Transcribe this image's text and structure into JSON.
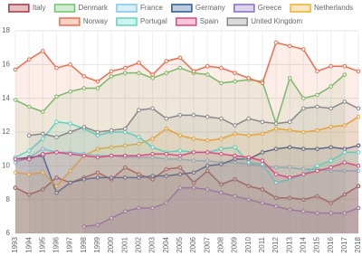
{
  "chart_data": {
    "type": "line",
    "categories": [
      "1993",
      "1994",
      "1995",
      "1996",
      "1997",
      "1998",
      "1999",
      "2000",
      "2001",
      "2002",
      "2003",
      "2004",
      "2005",
      "2006",
      "2007",
      "2008",
      "2009",
      "2010",
      "2011",
      "2012",
      "2013",
      "2014",
      "2015",
      "2016",
      "2017",
      "2018"
    ],
    "ylim": [
      6,
      18
    ],
    "yticks": [
      6,
      8,
      10,
      12,
      14,
      16,
      18
    ],
    "grid": true,
    "legend": "top",
    "series": [
      {
        "name": "Italy",
        "color": "#a8323e",
        "values": [
          8.7,
          8.3,
          8.6,
          9.3,
          9.0,
          9.3,
          9.6,
          9.2,
          9.9,
          9.5,
          9.2,
          9.8,
          9.9,
          9.0,
          9.7,
          8.9,
          9.2,
          8.8,
          8.6,
          8.1,
          8.1,
          8.0,
          8.2,
          7.8,
          8.3,
          8.8
        ]
      },
      {
        "name": "Denmark",
        "color": "#6cc36c",
        "values": [
          13.9,
          13.5,
          13.2,
          14.1,
          14.4,
          14.6,
          14.6,
          15.3,
          15.5,
          15.5,
          15.2,
          15.5,
          15.8,
          15.5,
          15.4,
          14.9,
          15.0,
          15.1,
          15.0,
          12.5,
          15.2,
          14.0,
          14.2,
          14.7,
          15.4,
          null
        ]
      },
      {
        "name": "France",
        "color": "#7ec8e8",
        "values": [
          10.2,
          10.5,
          11.0,
          10.8,
          10.8,
          10.7,
          10.6,
          10.6,
          10.5,
          10.5,
          10.5,
          10.4,
          10.4,
          10.3,
          10.3,
          10.2,
          10.2,
          10.1,
          10.0,
          9.9,
          9.9,
          9.8,
          9.8,
          9.7,
          9.7,
          9.7
        ]
      },
      {
        "name": "Germany",
        "color": "#2a5699",
        "values": [
          10.4,
          10.5,
          10.6,
          8.4,
          9.0,
          9.2,
          9.3,
          9.3,
          9.3,
          9.3,
          9.4,
          9.4,
          9.5,
          9.6,
          10.0,
          10.1,
          10.4,
          10.4,
          10.8,
          11.0,
          11.1,
          11.0,
          11.0,
          11.1,
          11.0,
          11.2
        ]
      },
      {
        "name": "Greece",
        "color": "#8a6cc0",
        "values": [
          null,
          null,
          null,
          null,
          null,
          6.4,
          6.5,
          6.9,
          7.3,
          7.5,
          7.5,
          7.8,
          8.7,
          8.7,
          8.6,
          8.4,
          8.2,
          8.0,
          7.8,
          7.6,
          7.4,
          7.3,
          7.2,
          7.2,
          7.2,
          7.5
        ]
      },
      {
        "name": "Netherlands",
        "color": "#f0b030",
        "values": [
          9.6,
          9.5,
          9.6,
          8.8,
          9.7,
          10.6,
          11.0,
          11.1,
          11.2,
          11.3,
          11.6,
          12.2,
          11.8,
          11.6,
          11.5,
          11.6,
          11.9,
          11.8,
          11.9,
          12.2,
          12.1,
          12.0,
          12.1,
          12.3,
          12.4,
          12.9
        ]
      },
      {
        "name": "Norway",
        "color": "#f06a4a",
        "values": [
          15.7,
          16.3,
          16.8,
          15.8,
          16.0,
          15.3,
          15.0,
          15.6,
          15.8,
          16.1,
          15.4,
          16.2,
          16.4,
          15.6,
          15.9,
          15.8,
          15.5,
          15.2,
          14.9,
          17.3,
          17.1,
          16.9,
          15.6,
          15.9,
          15.9,
          15.6
        ]
      },
      {
        "name": "Portugal",
        "color": "#5ed3c0",
        "values": [
          10.5,
          10.9,
          11.6,
          12.6,
          12.5,
          12.2,
          11.8,
          12.0,
          12.0,
          11.7,
          11.1,
          10.8,
          10.9,
          10.8,
          10.8,
          11.0,
          11.1,
          10.2,
          10.1,
          9.0,
          9.2,
          9.5,
          10.0,
          10.3,
          10.8,
          10.8
        ]
      },
      {
        "name": "Spain",
        "color": "#e0457b",
        "values": [
          10.4,
          10.4,
          10.7,
          10.8,
          10.7,
          10.6,
          10.5,
          10.6,
          10.6,
          10.6,
          10.7,
          10.7,
          10.6,
          10.8,
          10.8,
          10.7,
          10.6,
          10.5,
          10.3,
          9.5,
          9.3,
          9.5,
          9.7,
          9.9,
          10.2,
          10.0
        ]
      },
      {
        "name": "United Kingdom",
        "color": "#888888",
        "values": [
          null,
          11.8,
          11.9,
          11.7,
          12.0,
          12.3,
          12.0,
          12.1,
          12.2,
          13.3,
          13.4,
          12.8,
          13.0,
          13.0,
          12.9,
          12.8,
          12.4,
          12.8,
          12.6,
          12.5,
          12.6,
          13.4,
          13.5,
          13.4,
          13.8,
          13.4
        ]
      }
    ]
  }
}
